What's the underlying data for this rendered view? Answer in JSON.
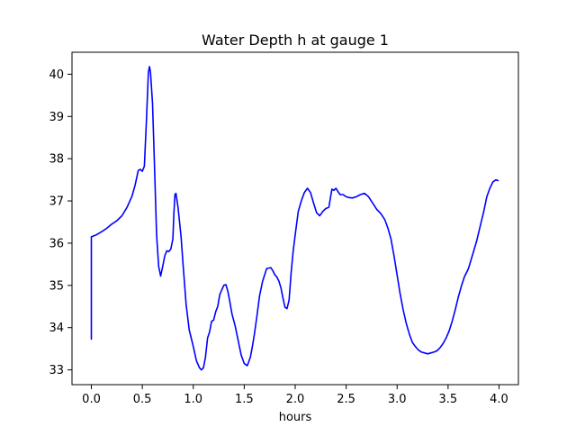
{
  "chart_data": {
    "type": "line",
    "title": "Water Depth h at gauge 1",
    "xlabel": "hours",
    "ylabel": "",
    "xlim": [
      -0.19,
      4.19
    ],
    "ylim": [
      32.65,
      40.52
    ],
    "xticks": [
      "0.0",
      "0.5",
      "1.0",
      "1.5",
      "2.0",
      "2.5",
      "3.0",
      "3.5",
      "4.0"
    ],
    "yticks": [
      "33",
      "34",
      "35",
      "36",
      "37",
      "38",
      "39",
      "40"
    ],
    "grid": false,
    "legend": "none",
    "series": [
      {
        "color": "#0000ff",
        "x": [
          0.0,
          0.0,
          0.05,
          0.1,
          0.15,
          0.2,
          0.25,
          0.3,
          0.35,
          0.4,
          0.43,
          0.46,
          0.48,
          0.5,
          0.52,
          0.54,
          0.56,
          0.57,
          0.58,
          0.6,
          0.62,
          0.64,
          0.66,
          0.68,
          0.7,
          0.72,
          0.74,
          0.76,
          0.78,
          0.8,
          0.81,
          0.82,
          0.83,
          0.85,
          0.88,
          0.9,
          0.93,
          0.96,
          1.0,
          1.03,
          1.06,
          1.08,
          1.1,
          1.12,
          1.14,
          1.16,
          1.18,
          1.2,
          1.22,
          1.24,
          1.26,
          1.28,
          1.3,
          1.32,
          1.34,
          1.36,
          1.38,
          1.41,
          1.44,
          1.47,
          1.5,
          1.53,
          1.56,
          1.58,
          1.6,
          1.62,
          1.65,
          1.68,
          1.72,
          1.76,
          1.78,
          1.8,
          1.82,
          1.84,
          1.86,
          1.88,
          1.9,
          1.92,
          1.94,
          1.96,
          1.98,
          2.0,
          2.03,
          2.06,
          2.09,
          2.12,
          2.15,
          2.18,
          2.21,
          2.24,
          2.27,
          2.3,
          2.33,
          2.36,
          2.38,
          2.4,
          2.42,
          2.44,
          2.47,
          2.5,
          2.53,
          2.56,
          2.6,
          2.64,
          2.68,
          2.72,
          2.76,
          2.8,
          2.84,
          2.88,
          2.91,
          2.94,
          2.97,
          3.0,
          3.03,
          3.06,
          3.09,
          3.12,
          3.15,
          3.18,
          3.21,
          3.24,
          3.27,
          3.3,
          3.33,
          3.36,
          3.39,
          3.42,
          3.45,
          3.48,
          3.51,
          3.54,
          3.57,
          3.6,
          3.63,
          3.66,
          3.7,
          3.74,
          3.78,
          3.82,
          3.85,
          3.88,
          3.91,
          3.94,
          3.97,
          3.99
        ],
        "values": [
          33.73,
          36.15,
          36.2,
          36.27,
          36.35,
          36.45,
          36.53,
          36.65,
          36.85,
          37.12,
          37.38,
          37.72,
          37.75,
          37.7,
          37.82,
          38.9,
          40.05,
          40.18,
          40.05,
          39.3,
          37.8,
          36.2,
          35.45,
          35.22,
          35.45,
          35.7,
          35.82,
          35.8,
          35.86,
          36.1,
          36.7,
          37.15,
          37.18,
          36.85,
          36.15,
          35.5,
          34.55,
          33.95,
          33.55,
          33.22,
          33.05,
          33.0,
          33.05,
          33.3,
          33.75,
          33.9,
          34.15,
          34.18,
          34.38,
          34.5,
          34.78,
          34.9,
          35.0,
          35.02,
          34.85,
          34.6,
          34.32,
          34.05,
          33.7,
          33.35,
          33.15,
          33.1,
          33.3,
          33.55,
          33.85,
          34.2,
          34.75,
          35.1,
          35.4,
          35.42,
          35.35,
          35.25,
          35.2,
          35.1,
          34.95,
          34.7,
          34.48,
          34.45,
          34.65,
          35.3,
          35.8,
          36.2,
          36.75,
          37.0,
          37.2,
          37.3,
          37.2,
          36.95,
          36.72,
          36.65,
          36.75,
          36.82,
          36.85,
          37.28,
          37.25,
          37.3,
          37.22,
          37.15,
          37.15,
          37.1,
          37.08,
          37.07,
          37.1,
          37.15,
          37.18,
          37.1,
          36.95,
          36.8,
          36.7,
          36.55,
          36.35,
          36.1,
          35.7,
          35.25,
          34.8,
          34.42,
          34.1,
          33.85,
          33.65,
          33.55,
          33.47,
          33.42,
          33.4,
          33.38,
          33.4,
          33.42,
          33.45,
          33.52,
          33.62,
          33.75,
          33.92,
          34.15,
          34.42,
          34.72,
          34.98,
          35.2,
          35.4,
          35.72,
          36.05,
          36.45,
          36.75,
          37.1,
          37.3,
          37.45,
          37.5,
          37.48
        ]
      }
    ]
  }
}
